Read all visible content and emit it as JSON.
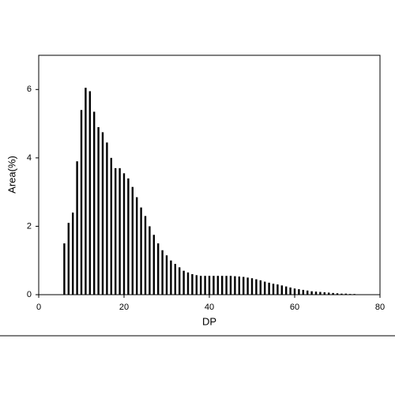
{
  "chart_data": {
    "type": "bar",
    "x_label": "DP",
    "y_label": "Area(%)",
    "x": [
      6,
      7,
      8,
      9,
      10,
      11,
      12,
      13,
      14,
      15,
      16,
      17,
      18,
      19,
      20,
      21,
      22,
      23,
      24,
      25,
      26,
      27,
      28,
      29,
      30,
      31,
      32,
      33,
      34,
      35,
      36,
      37,
      38,
      39,
      40,
      41,
      42,
      43,
      44,
      45,
      46,
      47,
      48,
      49,
      50,
      51,
      52,
      53,
      54,
      55,
      56,
      57,
      58,
      59,
      60,
      61,
      62,
      63,
      64,
      65,
      66,
      67,
      68,
      69,
      70,
      71,
      72,
      73,
      74,
      75
    ],
    "values": [
      1.5,
      2.1,
      2.4,
      3.9,
      5.4,
      6.05,
      5.95,
      5.35,
      4.9,
      4.75,
      4.45,
      4.0,
      3.7,
      3.7,
      3.55,
      3.4,
      3.15,
      2.85,
      2.55,
      2.3,
      2.0,
      1.75,
      1.5,
      1.3,
      1.15,
      1.0,
      0.9,
      0.8,
      0.7,
      0.65,
      0.6,
      0.57,
      0.55,
      0.55,
      0.55,
      0.55,
      0.55,
      0.55,
      0.55,
      0.55,
      0.54,
      0.53,
      0.52,
      0.5,
      0.48,
      0.45,
      0.42,
      0.38,
      0.35,
      0.32,
      0.3,
      0.27,
      0.24,
      0.21,
      0.18,
      0.16,
      0.14,
      0.12,
      0.1,
      0.09,
      0.08,
      0.07,
      0.06,
      0.05,
      0.04,
      0.03,
      0.03,
      0.02,
      0.02,
      0.01
    ],
    "color": "#000000",
    "xlim": [
      0,
      80
    ],
    "xticks": [
      0,
      20,
      40,
      60,
      80
    ],
    "ylim": [
      0,
      7
    ],
    "yticks": [
      0,
      2,
      4,
      6
    ]
  }
}
